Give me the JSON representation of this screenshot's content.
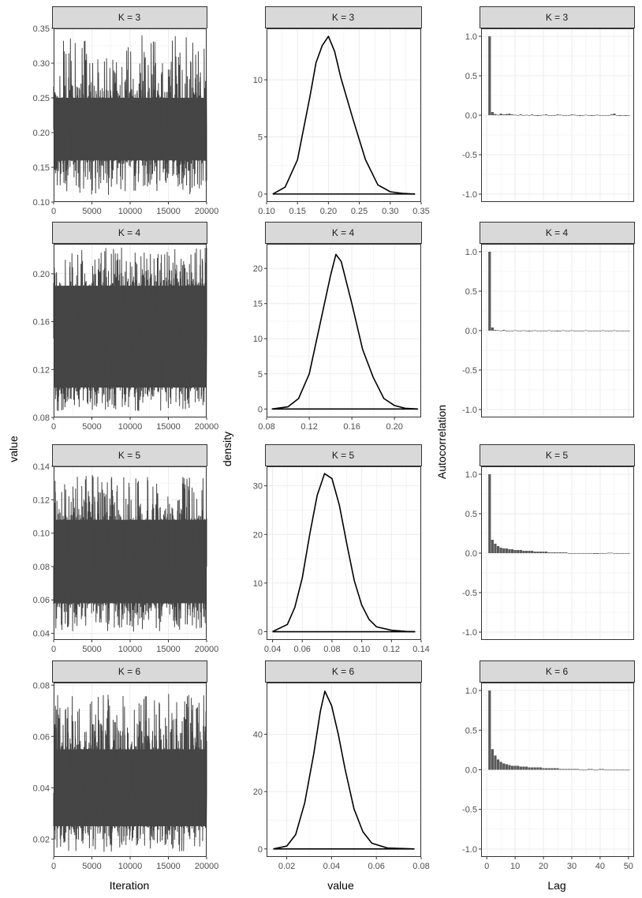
{
  "colors": {
    "strip_fill": "#d9d9d9",
    "strip_border": "#333333",
    "panel_border": "#333333",
    "grid": "#ebebeb",
    "trace": "#454545",
    "density_line": "#000000",
    "acf_bar": "#595959",
    "tick_text": "#4d4d4d"
  },
  "axis_titles": {
    "trace_x": "Iteration",
    "trace_y": "value",
    "density_x": "value",
    "density_y": "density",
    "acf_x": "Lag",
    "acf_y": "Autocorrelation"
  },
  "chart_data": [
    {
      "type": "line",
      "subtype": "trace",
      "facet": "K = 3",
      "xlim": [
        0,
        20000
      ],
      "ylim": [
        0.1,
        0.35
      ],
      "xticks": [
        0,
        5000,
        10000,
        15000,
        20000
      ],
      "xtick_labels": [
        "0",
        "5000",
        "10000",
        "15000",
        "20000"
      ],
      "yticks": [
        0.1,
        0.15,
        0.2,
        0.25,
        0.3,
        0.35
      ],
      "ytick_labels": [
        "0.10",
        "0.15",
        "0.20",
        "0.25",
        "0.30",
        "0.35"
      ],
      "band": [
        0.16,
        0.25
      ],
      "range": [
        0.11,
        0.34
      ],
      "mean": 0.204,
      "grid": true
    },
    {
      "type": "line",
      "subtype": "density",
      "facet": "K = 3",
      "xlim": [
        0.1,
        0.35
      ],
      "ylim": [
        -0.7,
        14.5
      ],
      "xticks": [
        0.1,
        0.15,
        0.2,
        0.25,
        0.3,
        0.35
      ],
      "xtick_labels": [
        "0.10",
        "0.15",
        "0.20",
        "0.25",
        "0.30",
        "0.35"
      ],
      "yticks": [
        0,
        5,
        10
      ],
      "ytick_labels": [
        "0",
        "5",
        "10"
      ],
      "x": [
        0.11,
        0.13,
        0.15,
        0.17,
        0.18,
        0.19,
        0.2,
        0.21,
        0.22,
        0.24,
        0.26,
        0.28,
        0.3,
        0.32,
        0.34
      ],
      "y": [
        0,
        0.6,
        3.0,
        8.5,
        11.5,
        13.0,
        13.8,
        12.5,
        10.2,
        6.5,
        3.0,
        0.8,
        0.2,
        0.05,
        0
      ],
      "baseline": [
        0.11,
        0.34
      ],
      "grid": true
    },
    {
      "type": "bar",
      "subtype": "acf",
      "facet": "K = 3",
      "xlim": [
        -2,
        52
      ],
      "ylim": [
        -1.1,
        1.1
      ],
      "yticks": [
        -1,
        -0.5,
        0,
        0.5,
        1
      ],
      "ytick_labels": [
        "-1.0",
        "-0.5",
        "0.0",
        "0.5",
        "1.0"
      ],
      "lags": [
        1,
        2,
        3,
        4,
        5,
        6,
        7,
        8,
        9,
        10,
        11,
        12,
        13,
        14,
        15,
        16,
        17,
        18,
        19,
        20,
        21,
        22,
        23,
        24,
        25,
        26,
        27,
        28,
        29,
        30,
        31,
        32,
        33,
        34,
        35,
        36,
        37,
        38,
        39,
        40,
        41,
        42,
        43,
        44,
        45,
        46,
        47,
        48,
        49,
        50
      ],
      "values": [
        1.0,
        0.04,
        0.015,
        0.005,
        0.02,
        0.01,
        0.015,
        0.02,
        0.01,
        0.005,
        0.0,
        0.01,
        0.0,
        0.005,
        0.0,
        0.01,
        0.0,
        -0.01,
        0.0,
        0.005,
        0.01,
        0.0,
        -0.005,
        0.0,
        0.01,
        0.005,
        0.0,
        -0.005,
        0.0,
        0.01,
        0.005,
        0.0,
        -0.01,
        0.0,
        0.005,
        0.0,
        -0.01,
        0.0,
        0.005,
        0.0,
        -0.005,
        0.0,
        0.0,
        0.01,
        0.02,
        0.0,
        -0.01,
        0.0,
        -0.01,
        0.0
      ],
      "grid": true
    },
    {
      "type": "line",
      "subtype": "trace",
      "facet": "K = 4",
      "xlim": [
        0,
        20000
      ],
      "ylim": [
        0.08,
        0.225
      ],
      "xticks": [
        0,
        5000,
        10000,
        15000,
        20000
      ],
      "xtick_labels": [
        "0",
        "5000",
        "10000",
        "15000",
        "20000"
      ],
      "yticks": [
        0.08,
        0.12,
        0.16,
        0.2
      ],
      "ytick_labels": [
        "0.08",
        "0.12",
        "0.16",
        "0.20"
      ],
      "band": [
        0.105,
        0.19
      ],
      "range": [
        0.085,
        0.222
      ],
      "mean": 0.146,
      "grid": true
    },
    {
      "type": "line",
      "subtype": "density",
      "facet": "K = 4",
      "xlim": [
        0.08,
        0.225
      ],
      "ylim": [
        -1.2,
        23.5
      ],
      "xticks": [
        0.08,
        0.12,
        0.16,
        0.2
      ],
      "xtick_labels": [
        "0.08",
        "0.12",
        "0.16",
        "0.20"
      ],
      "yticks": [
        0,
        5,
        10,
        15,
        20
      ],
      "ytick_labels": [
        "0",
        "5",
        "10",
        "15",
        "20"
      ],
      "x": [
        0.085,
        0.1,
        0.11,
        0.12,
        0.13,
        0.14,
        0.145,
        0.15,
        0.16,
        0.17,
        0.18,
        0.19,
        0.2,
        0.21,
        0.222
      ],
      "y": [
        0,
        0.3,
        1.5,
        5.0,
        12.0,
        19.0,
        22.0,
        21.0,
        15.0,
        8.5,
        4.5,
        1.5,
        0.5,
        0.1,
        0
      ],
      "baseline": [
        0.085,
        0.222
      ],
      "grid": true
    },
    {
      "type": "bar",
      "subtype": "acf",
      "facet": "K = 4",
      "xlim": [
        -2,
        52
      ],
      "ylim": [
        -1.1,
        1.1
      ],
      "yticks": [
        -1,
        -0.5,
        0,
        0.5,
        1
      ],
      "ytick_labels": [
        "-1.0",
        "-0.5",
        "0.0",
        "0.5",
        "1.0"
      ],
      "lags": [
        1,
        2,
        3,
        4,
        5,
        6,
        7,
        8,
        9,
        10,
        11,
        12,
        13,
        14,
        15,
        16,
        17,
        18,
        19,
        20,
        21,
        22,
        23,
        24,
        25,
        26,
        27,
        28,
        29,
        30,
        31,
        32,
        33,
        34,
        35,
        36,
        37,
        38,
        39,
        40,
        41,
        42,
        43,
        44,
        45,
        46,
        47,
        48,
        49,
        50
      ],
      "values": [
        1.0,
        0.04,
        0.01,
        0.005,
        0.0,
        0.01,
        0.0,
        -0.005,
        0.0,
        0.005,
        0.0,
        0.0,
        0.005,
        0.0,
        -0.01,
        0.0,
        0.005,
        0.0,
        0.0,
        -0.005,
        0.0,
        0.005,
        0.0,
        0.0,
        -0.01,
        0.0,
        0.005,
        0.0,
        0.0,
        0.005,
        0.0,
        -0.005,
        0.0,
        0.0,
        0.005,
        0.0,
        0.0,
        0.0,
        -0.005,
        0.0,
        0.005,
        0.0,
        0.0,
        0.0,
        0.005,
        0.0,
        0.0,
        -0.005,
        0.0,
        0.0
      ],
      "grid": true
    },
    {
      "type": "line",
      "subtype": "trace",
      "facet": "K = 5",
      "xlim": [
        0,
        20000
      ],
      "ylim": [
        0.036,
        0.14
      ],
      "xticks": [
        0,
        5000,
        10000,
        15000,
        20000
      ],
      "xtick_labels": [
        "0",
        "5000",
        "10000",
        "15000",
        "20000"
      ],
      "yticks": [
        0.04,
        0.06,
        0.08,
        0.1,
        0.12,
        0.14
      ],
      "ytick_labels": [
        "0.04",
        "0.06",
        "0.08",
        "0.10",
        "0.12",
        "0.14"
      ],
      "band": [
        0.058,
        0.108
      ],
      "range": [
        0.04,
        0.135
      ],
      "mean": 0.08,
      "grid": true
    },
    {
      "type": "line",
      "subtype": "density",
      "facet": "K = 5",
      "xlim": [
        0.036,
        0.14
      ],
      "ylim": [
        -1.7,
        34
      ],
      "xticks": [
        0.04,
        0.06,
        0.08,
        0.1,
        0.12,
        0.14
      ],
      "xtick_labels": [
        "0.04",
        "0.06",
        "0.08",
        "0.10",
        "0.12",
        "0.14"
      ],
      "yticks": [
        0,
        10,
        20,
        30
      ],
      "ytick_labels": [
        "0",
        "10",
        "20",
        "30"
      ],
      "x": [
        0.04,
        0.05,
        0.055,
        0.06,
        0.065,
        0.07,
        0.075,
        0.08,
        0.085,
        0.09,
        0.095,
        0.1,
        0.105,
        0.11,
        0.12,
        0.13,
        0.136
      ],
      "y": [
        0,
        1.5,
        5.0,
        11.0,
        20.0,
        28.0,
        32.5,
        31.5,
        26.0,
        18.0,
        10.5,
        5.5,
        2.5,
        1.0,
        0.3,
        0.05,
        0
      ],
      "baseline": [
        0.04,
        0.136
      ],
      "grid": true
    },
    {
      "type": "bar",
      "subtype": "acf",
      "facet": "K = 5",
      "xlim": [
        -2,
        52
      ],
      "ylim": [
        -1.1,
        1.1
      ],
      "yticks": [
        -1,
        -0.5,
        0,
        0.5,
        1
      ],
      "ytick_labels": [
        "-1.0",
        "-0.5",
        "0.0",
        "0.5",
        "1.0"
      ],
      "lags": [
        1,
        2,
        3,
        4,
        5,
        6,
        7,
        8,
        9,
        10,
        11,
        12,
        13,
        14,
        15,
        16,
        17,
        18,
        19,
        20,
        21,
        22,
        23,
        24,
        25,
        26,
        27,
        28,
        29,
        30,
        31,
        32,
        33,
        34,
        35,
        36,
        37,
        38,
        39,
        40,
        41,
        42,
        43,
        44,
        45,
        46,
        47,
        48,
        49,
        50
      ],
      "values": [
        1.0,
        0.17,
        0.12,
        0.09,
        0.07,
        0.06,
        0.06,
        0.05,
        0.05,
        0.04,
        0.04,
        0.04,
        0.03,
        0.03,
        0.03,
        0.03,
        0.02,
        0.02,
        0.02,
        0.02,
        0.02,
        0.01,
        0.01,
        0.01,
        0.01,
        0.01,
        0.01,
        0.01,
        0.0,
        0.0,
        0.0,
        0.0,
        0.0,
        0.0,
        0.0,
        -0.005,
        -0.005,
        -0.01,
        -0.01,
        -0.005,
        0.0,
        0.0,
        0.005,
        0.005,
        0.0,
        0.0,
        0.0,
        0.0,
        0.0,
        0.0
      ],
      "grid": true
    },
    {
      "type": "line",
      "subtype": "trace",
      "facet": "K = 6",
      "xlim": [
        0,
        20000
      ],
      "ylim": [
        0.013,
        0.081
      ],
      "xticks": [
        0,
        5000,
        10000,
        15000,
        20000
      ],
      "xtick_labels": [
        "0",
        "5000",
        "10000",
        "15000",
        "20000"
      ],
      "yticks": [
        0.02,
        0.04,
        0.06,
        0.08
      ],
      "ytick_labels": [
        "0.02",
        "0.04",
        "0.06",
        "0.08"
      ],
      "band": [
        0.025,
        0.055
      ],
      "range": [
        0.015,
        0.077
      ],
      "mean": 0.038,
      "grid": true
    },
    {
      "type": "line",
      "subtype": "density",
      "facet": "K = 6",
      "xlim": [
        0.011,
        0.08
      ],
      "ylim": [
        -2.8,
        58
      ],
      "xticks": [
        0.02,
        0.04,
        0.06,
        0.08
      ],
      "xtick_labels": [
        "0.02",
        "0.04",
        "0.06",
        "0.08"
      ],
      "yticks": [
        0,
        20,
        40
      ],
      "ytick_labels": [
        "0",
        "20",
        "40"
      ],
      "x": [
        0.014,
        0.02,
        0.024,
        0.028,
        0.032,
        0.035,
        0.037,
        0.04,
        0.043,
        0.046,
        0.05,
        0.054,
        0.058,
        0.065,
        0.077
      ],
      "y": [
        0,
        1.0,
        5.0,
        16.0,
        33.0,
        48.0,
        55.0,
        50.0,
        40.0,
        28.0,
        14.0,
        6.0,
        2.0,
        0.3,
        0
      ],
      "baseline": [
        0.014,
        0.077
      ],
      "grid": true
    },
    {
      "type": "bar",
      "subtype": "acf",
      "facet": "K = 6",
      "xlim": [
        -2,
        52
      ],
      "ylim": [
        -1.1,
        1.1
      ],
      "yticks": [
        -1,
        -0.5,
        0,
        0.5,
        1
      ],
      "ytick_labels": [
        "-1.0",
        "-0.5",
        "0.0",
        "0.5",
        "1.0"
      ],
      "xticks": [
        0,
        10,
        20,
        30,
        40,
        50
      ],
      "xtick_labels": [
        "0",
        "10",
        "20",
        "30",
        "40",
        "50"
      ],
      "lags": [
        1,
        2,
        3,
        4,
        5,
        6,
        7,
        8,
        9,
        10,
        11,
        12,
        13,
        14,
        15,
        16,
        17,
        18,
        19,
        20,
        21,
        22,
        23,
        24,
        25,
        26,
        27,
        28,
        29,
        30,
        31,
        32,
        33,
        34,
        35,
        36,
        37,
        38,
        39,
        40,
        41,
        42,
        43,
        44,
        45,
        46,
        47,
        48,
        49,
        50
      ],
      "values": [
        1.0,
        0.26,
        0.18,
        0.13,
        0.1,
        0.08,
        0.07,
        0.06,
        0.05,
        0.05,
        0.05,
        0.04,
        0.04,
        0.04,
        0.03,
        0.03,
        0.03,
        0.03,
        0.03,
        0.02,
        0.02,
        0.02,
        0.02,
        0.02,
        0.02,
        0.01,
        0.01,
        0.01,
        0.01,
        0.01,
        0.01,
        0.01,
        0.0,
        0.0,
        0.0,
        0.01,
        0.01,
        0.0,
        0.0,
        0.01,
        0.01,
        0.0,
        0.0,
        0.0,
        0.0,
        0.0,
        0.0,
        -0.005,
        0.0,
        0.0
      ],
      "grid": true
    }
  ]
}
